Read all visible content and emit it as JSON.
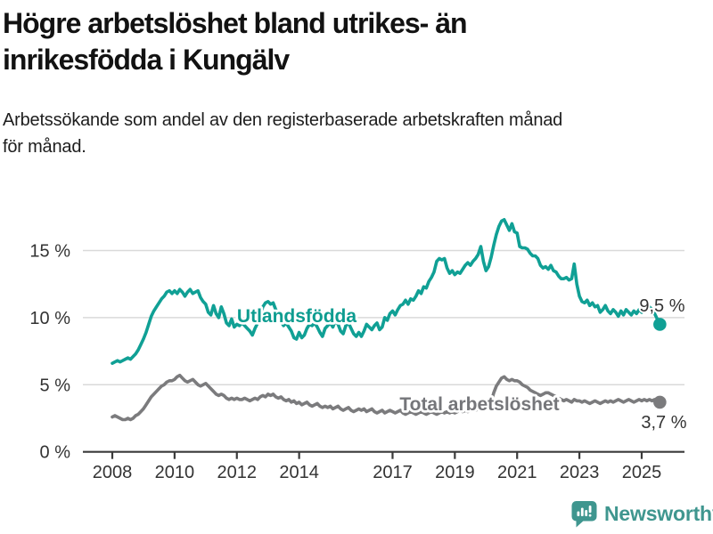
{
  "header": {
    "title_lines": [
      "Högre arbetslöshet bland utrikes- än",
      "inrikesfödda i Kungälv"
    ],
    "subtitle_lines": [
      "Arbetssökande som andel av den registerbaserade arbetskraften månad",
      "för månad."
    ]
  },
  "colors": {
    "foreign_born_series": "#10a095",
    "total_series": "#7b7b7d",
    "series_label_foreign": "#0d9c90",
    "series_label_total": "#75767a",
    "grid": "#d9d9d9",
    "axis": "#3a3a3a",
    "axis_text": "#333333",
    "value_label_text": "#333333",
    "brand_teal": "#3f968f"
  },
  "chart_data": {
    "type": "line",
    "title": "Högre arbetslöshet bland utrikes- än inrikesfödda i Kungälv",
    "subtitle": "Arbetssökande som andel av den registerbaserade arbetskraften månad för månad.",
    "unit": "%",
    "start_year": 2008,
    "start_month": 1,
    "frequency": "monthly",
    "ylim": [
      0,
      18
    ],
    "grid": true,
    "legend_position": "inline-annotations",
    "y_ticks": [
      {
        "value": 0,
        "label": "0 %"
      },
      {
        "value": 5,
        "label": "5 %"
      },
      {
        "value": 10,
        "label": "10 %"
      },
      {
        "value": 15,
        "label": "15 %"
      }
    ],
    "x_ticks": [
      {
        "value": 2008,
        "label": "2008"
      },
      {
        "value": 2010,
        "label": "2010"
      },
      {
        "value": 2012,
        "label": "2012"
      },
      {
        "value": 2014,
        "label": "2014"
      },
      {
        "value": 2017,
        "label": "2017"
      },
      {
        "value": 2019,
        "label": "2019"
      },
      {
        "value": 2021,
        "label": "2021"
      },
      {
        "value": 2023,
        "label": "2023"
      },
      {
        "value": 2025,
        "label": "2025"
      }
    ],
    "series": [
      {
        "name": "Utlandsfödda",
        "end_label": "9,5 %",
        "last_value": 9.5,
        "values": [
          6.6,
          6.7,
          6.8,
          6.7,
          6.8,
          6.9,
          7.0,
          6.9,
          7.1,
          7.3,
          7.6,
          8.0,
          8.4,
          8.9,
          9.5,
          10.1,
          10.5,
          10.8,
          11.1,
          11.4,
          11.6,
          11.9,
          12.0,
          11.8,
          12.0,
          11.8,
          12.1,
          11.9,
          11.6,
          11.9,
          12.1,
          11.8,
          11.9,
          12.0,
          11.5,
          11.2,
          11.0,
          10.4,
          10.2,
          10.9,
          10.3,
          10.0,
          10.8,
          10.3,
          9.6,
          9.4,
          9.9,
          9.3,
          9.5,
          9.4,
          9.6,
          9.4,
          9.2,
          9.0,
          8.7,
          9.2,
          9.6,
          10.2,
          10.8,
          11.1,
          11.2,
          11.0,
          11.1,
          10.6,
          10.1,
          9.7,
          9.4,
          9.6,
          9.3,
          9.0,
          8.5,
          8.4,
          8.9,
          8.5,
          8.7,
          9.2,
          9.5,
          9.4,
          9.6,
          9.3,
          8.9,
          8.6,
          9.2,
          9.4,
          9.6,
          9.3,
          9.8,
          9.5,
          9.0,
          8.8,
          9.4,
          9.6,
          9.2,
          8.8,
          8.6,
          8.9,
          8.6,
          9.0,
          9.5,
          9.3,
          9.1,
          9.4,
          9.6,
          9.1,
          9.3,
          10.0,
          9.8,
          10.3,
          10.5,
          10.2,
          10.6,
          10.9,
          11.0,
          11.3,
          11.0,
          11.4,
          11.3,
          11.6,
          12.0,
          11.8,
          12.3,
          12.2,
          12.7,
          13.0,
          13.4,
          14.2,
          14.4,
          14.3,
          14.4,
          13.7,
          13.3,
          13.5,
          13.2,
          13.4,
          13.3,
          13.6,
          13.9,
          14.1,
          13.9,
          14.2,
          14.4,
          14.7,
          15.3,
          14.2,
          13.5,
          13.8,
          14.5,
          15.4,
          16.2,
          16.8,
          17.2,
          17.3,
          16.9,
          16.5,
          17.0,
          16.4,
          16.3,
          15.3,
          15.2,
          15.2,
          15.1,
          14.8,
          14.6,
          14.6,
          14.4,
          13.9,
          13.7,
          13.8,
          13.6,
          13.9,
          13.5,
          13.4,
          13.1,
          12.9,
          12.9,
          13.0,
          12.8,
          12.9,
          14.0,
          12.5,
          11.6,
          11.2,
          11.1,
          11.3,
          10.9,
          11.1,
          10.8,
          10.9,
          10.4,
          10.6,
          10.9,
          10.5,
          10.3,
          10.6,
          10.4,
          10.1,
          10.5,
          10.2,
          10.6,
          10.4,
          10.2,
          10.5,
          10.3,
          10.6,
          10.4,
          10.7,
          10.6,
          10.8,
          10.6,
          10.3,
          9.9,
          9.5
        ]
      },
      {
        "name": "Total arbetslöshet",
        "end_label": "3,7 %",
        "last_value": 3.7,
        "values": [
          2.6,
          2.7,
          2.6,
          2.5,
          2.4,
          2.4,
          2.5,
          2.4,
          2.5,
          2.7,
          2.8,
          3.0,
          3.2,
          3.5,
          3.8,
          4.1,
          4.3,
          4.5,
          4.7,
          4.9,
          5.0,
          5.2,
          5.3,
          5.3,
          5.4,
          5.6,
          5.7,
          5.5,
          5.3,
          5.2,
          5.3,
          5.4,
          5.2,
          5.0,
          4.9,
          5.0,
          5.1,
          4.9,
          4.7,
          4.5,
          4.3,
          4.2,
          4.3,
          4.2,
          4.0,
          3.9,
          4.0,
          3.9,
          4.0,
          3.9,
          3.9,
          4.0,
          3.9,
          3.8,
          3.9,
          4.0,
          3.9,
          4.1,
          4.2,
          4.1,
          4.3,
          4.2,
          4.3,
          4.1,
          4.0,
          4.1,
          3.9,
          3.8,
          3.9,
          3.7,
          3.8,
          3.6,
          3.7,
          3.5,
          3.6,
          3.7,
          3.5,
          3.4,
          3.5,
          3.6,
          3.4,
          3.3,
          3.4,
          3.3,
          3.4,
          3.2,
          3.3,
          3.4,
          3.2,
          3.1,
          3.2,
          3.3,
          3.1,
          3.0,
          3.1,
          3.2,
          3.1,
          3.2,
          3.0,
          3.1,
          3.2,
          3.0,
          2.9,
          3.0,
          3.1,
          2.9,
          3.0,
          3.1,
          3.0,
          2.9,
          3.0,
          3.1,
          2.9,
          2.8,
          2.9,
          3.0,
          2.9,
          2.8,
          2.9,
          3.0,
          2.9,
          2.8,
          2.9,
          3.0,
          2.9,
          2.8,
          2.9,
          3.0,
          2.9,
          3.0,
          2.9,
          3.0,
          2.9,
          3.0,
          3.1,
          3.0,
          3.1,
          3.0,
          3.1,
          3.2,
          3.1,
          3.2,
          3.3,
          3.1,
          3.2,
          3.3,
          3.7,
          4.4,
          4.9,
          5.2,
          5.5,
          5.6,
          5.4,
          5.3,
          5.4,
          5.3,
          5.3,
          5.2,
          5.0,
          4.9,
          4.8,
          4.6,
          4.5,
          4.4,
          4.3,
          4.2,
          4.3,
          4.4,
          4.4,
          4.3,
          4.2,
          4.1,
          4.0,
          3.9,
          3.8,
          3.9,
          3.8,
          3.7,
          3.9,
          3.8,
          3.8,
          3.7,
          3.8,
          3.7,
          3.6,
          3.7,
          3.8,
          3.7,
          3.6,
          3.7,
          3.8,
          3.7,
          3.8,
          3.7,
          3.8,
          3.9,
          3.8,
          3.7,
          3.8,
          3.9,
          3.8,
          3.7,
          3.8,
          3.9,
          3.8,
          3.9,
          3.8,
          3.9,
          3.8,
          3.9,
          3.8,
          3.7
        ]
      }
    ]
  },
  "footer": {
    "brand": "Newsworthy"
  }
}
